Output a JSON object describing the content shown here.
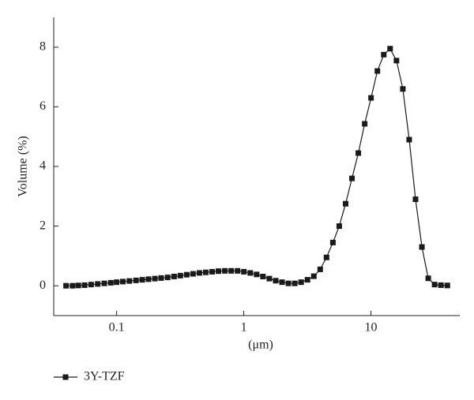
{
  "chart_data": {
    "type": "line",
    "x_label": "(μm)",
    "y_label": "Volume (%)",
    "x": [
      0.04,
      0.045,
      0.05,
      0.056,
      0.063,
      0.071,
      0.08,
      0.09,
      0.1,
      0.112,
      0.126,
      0.142,
      0.159,
      0.178,
      0.2,
      0.224,
      0.252,
      0.283,
      0.317,
      0.356,
      0.399,
      0.448,
      0.502,
      0.564,
      0.632,
      0.71,
      0.796,
      0.893,
      1.002,
      1.125,
      1.262,
      1.416,
      1.589,
      1.783,
      2.0,
      2.244,
      2.518,
      2.825,
      3.17,
      3.557,
      3.991,
      4.477,
      5.024,
      5.637,
      6.325,
      7.096,
      7.962,
      8.934,
      10.024,
      11.247,
      12.619,
      14.159,
      15.887,
      17.825,
      20,
      22.44,
      25.179,
      28.251,
      31.698,
      35.566,
      39.905
    ],
    "series": [
      {
        "name": "3Y-TZF",
        "color": "#1a1a1a",
        "values": [
          0.0,
          0.0,
          0.01,
          0.02,
          0.04,
          0.06,
          0.08,
          0.1,
          0.12,
          0.14,
          0.16,
          0.18,
          0.2,
          0.22,
          0.24,
          0.26,
          0.28,
          0.31,
          0.34,
          0.37,
          0.4,
          0.43,
          0.45,
          0.47,
          0.49,
          0.5,
          0.5,
          0.5,
          0.47,
          0.43,
          0.38,
          0.31,
          0.24,
          0.17,
          0.12,
          0.08,
          0.08,
          0.12,
          0.2,
          0.32,
          0.55,
          0.95,
          1.45,
          2.0,
          2.75,
          3.6,
          4.45,
          5.43,
          6.3,
          7.2,
          7.75,
          7.95,
          7.55,
          6.6,
          4.9,
          2.9,
          1.3,
          0.25,
          0.04,
          0.02,
          0.01
        ]
      }
    ],
    "xscale": "log",
    "xlim": [
      0.032,
      50
    ],
    "ylim": [
      -1,
      9
    ],
    "xticks": [
      0.1,
      1,
      10
    ],
    "yticks": [
      0,
      2,
      4,
      6,
      8
    ],
    "legend": "bottom-left"
  }
}
